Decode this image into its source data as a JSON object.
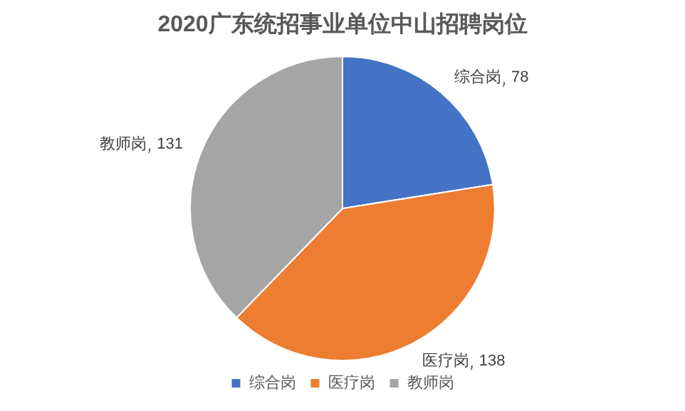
{
  "chart_data": {
    "type": "pie",
    "title": "2020广东统招事业单位中山招聘岗位",
    "categories": [
      "综合岗",
      "医疗岗",
      "教师岗"
    ],
    "values": [
      78,
      138,
      131
    ],
    "colors": [
      "#4472c4",
      "#ed7d31",
      "#a5a5a5"
    ],
    "data_labels": true,
    "legend": "bottom"
  }
}
